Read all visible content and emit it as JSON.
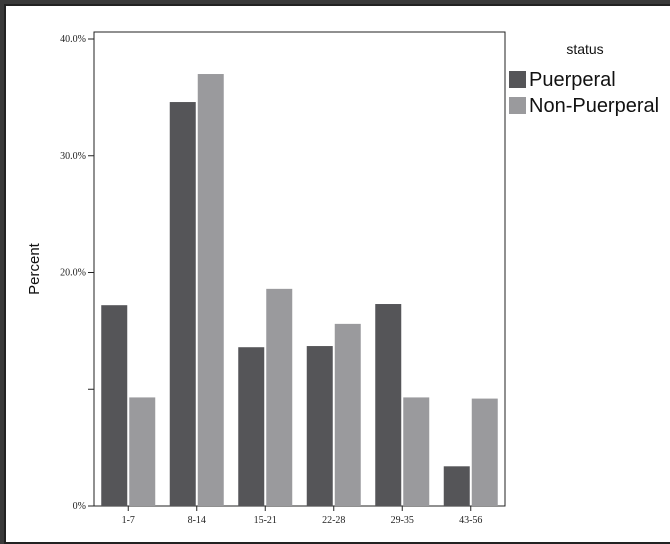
{
  "chart_data": {
    "type": "bar",
    "categories": [
      "1-7",
      "8-14",
      "15-21",
      "22-28",
      "29-35",
      "43-56"
    ],
    "series": [
      {
        "name": "Puerperal",
        "values": [
          17.2,
          34.6,
          13.6,
          13.7,
          17.3,
          3.4
        ],
        "color": "#555558"
      },
      {
        "name": "Non-Puerperal",
        "values": [
          9.3,
          37.0,
          18.6,
          15.6,
          9.3,
          9.2
        ],
        "color": "#9a9a9d"
      }
    ],
    "ylabel": "Percent",
    "ylim": [
      0,
      40
    ],
    "yticks": [
      {
        "value": 0,
        "label": "0%"
      },
      {
        "value": 10,
        "label": ""
      },
      {
        "value": 20,
        "label": "20.0%"
      },
      {
        "value": 30,
        "label": "30.0%"
      },
      {
        "value": 40,
        "label": "40.0%"
      }
    ],
    "legend": {
      "title": "status",
      "position": "top-right"
    },
    "grid": false
  }
}
